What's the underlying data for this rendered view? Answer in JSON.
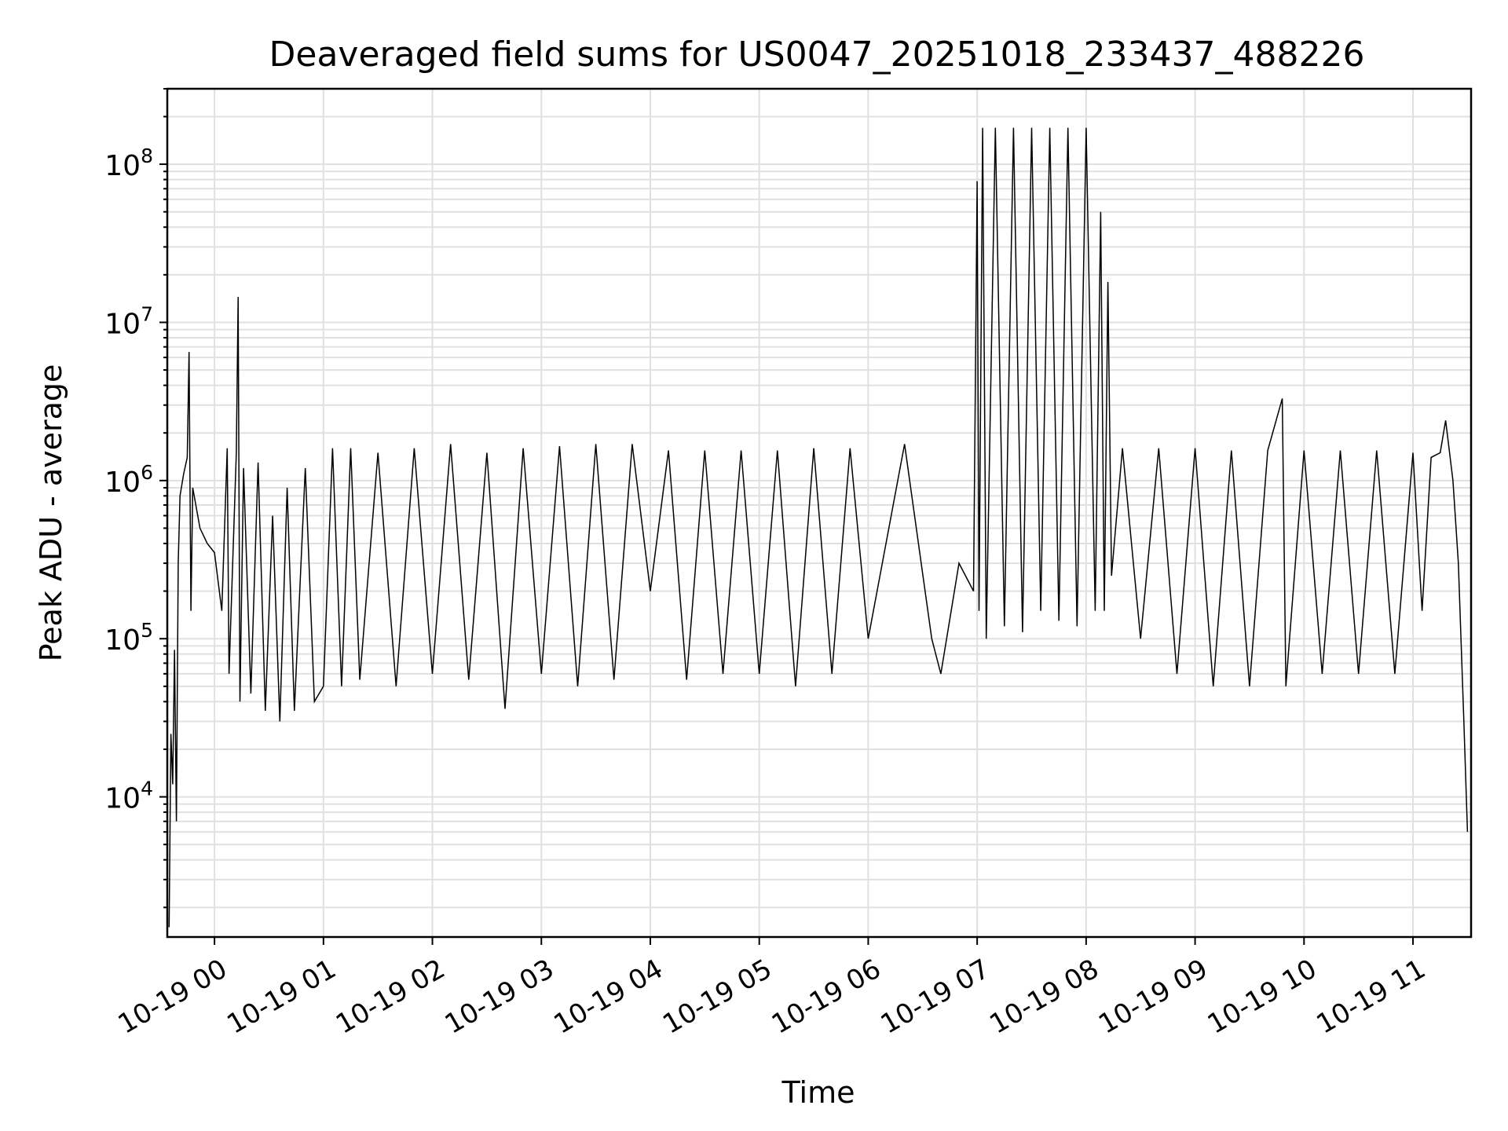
{
  "chart_data": {
    "type": "line",
    "title": "Deaveraged field sums for US0047_20251018_233437_488226",
    "xlabel": "Time",
    "ylabel": "Peak ADU - average",
    "yscale": "log",
    "ylim": [
      1300,
      300000000
    ],
    "xlim": [
      "2025-10-18 23:34",
      "2025-10-19 11:32"
    ],
    "grid": true,
    "line_color": "#000000",
    "x_ticks": [
      {
        "t": "2025-10-19 00:00",
        "label": "10-19 00"
      },
      {
        "t": "2025-10-19 01:00",
        "label": "10-19 01"
      },
      {
        "t": "2025-10-19 02:00",
        "label": "10-19 02"
      },
      {
        "t": "2025-10-19 03:00",
        "label": "10-19 03"
      },
      {
        "t": "2025-10-19 04:00",
        "label": "10-19 04"
      },
      {
        "t": "2025-10-19 05:00",
        "label": "10-19 05"
      },
      {
        "t": "2025-10-19 06:00",
        "label": "10-19 06"
      },
      {
        "t": "2025-10-19 07:00",
        "label": "10-19 07"
      },
      {
        "t": "2025-10-19 08:00",
        "label": "10-19 08"
      },
      {
        "t": "2025-10-19 09:00",
        "label": "10-19 09"
      },
      {
        "t": "2025-10-19 10:00",
        "label": "10-19 10"
      },
      {
        "t": "2025-10-19 11:00",
        "label": "10-19 11"
      }
    ],
    "y_ticks": [
      {
        "value": 10000,
        "base": "10",
        "exp": "4"
      },
      {
        "value": 100000,
        "base": "10",
        "exp": "5"
      },
      {
        "value": 1000000,
        "base": "10",
        "exp": "6"
      },
      {
        "value": 10000000,
        "base": "10",
        "exp": "7"
      },
      {
        "value": 100000000,
        "base": "10",
        "exp": "8"
      }
    ],
    "series": [
      {
        "points": [
          [
            "2025-10-18 23:35",
            1500
          ],
          [
            "2025-10-18 23:36",
            25000
          ],
          [
            "2025-10-18 23:37",
            12000
          ],
          [
            "2025-10-18 23:38",
            85000
          ],
          [
            "2025-10-18 23:39",
            7000
          ],
          [
            "2025-10-18 23:40",
            300000
          ],
          [
            "2025-10-18 23:41",
            800000
          ],
          [
            "2025-10-18 23:43",
            1100000
          ],
          [
            "2025-10-18 23:45",
            1400000
          ],
          [
            "2025-10-18 23:46",
            6500000
          ],
          [
            "2025-10-18 23:47",
            150000
          ],
          [
            "2025-10-18 23:48",
            900000
          ],
          [
            "2025-10-18 23:52",
            500000
          ],
          [
            "2025-10-18 23:56",
            400000
          ],
          [
            "2025-10-19 00:00",
            350000
          ],
          [
            "2025-10-19 00:04",
            150000
          ],
          [
            "2025-10-19 00:07",
            1600000
          ],
          [
            "2025-10-19 00:08",
            60000
          ],
          [
            "2025-10-19 00:12",
            1500000
          ],
          [
            "2025-10-19 00:13",
            14500000
          ],
          [
            "2025-10-19 00:14",
            40000
          ],
          [
            "2025-10-19 00:16",
            1200000
          ],
          [
            "2025-10-19 00:20",
            45000
          ],
          [
            "2025-10-19 00:24",
            1300000
          ],
          [
            "2025-10-19 00:28",
            35000
          ],
          [
            "2025-10-19 00:32",
            600000
          ],
          [
            "2025-10-19 00:36",
            30000
          ],
          [
            "2025-10-19 00:40",
            900000
          ],
          [
            "2025-10-19 00:44",
            35000
          ],
          [
            "2025-10-19 00:50",
            1200000
          ],
          [
            "2025-10-19 00:55",
            40000
          ],
          [
            "2025-10-19 01:00",
            50000
          ],
          [
            "2025-10-19 01:05",
            1600000
          ],
          [
            "2025-10-19 01:10",
            50000
          ],
          [
            "2025-10-19 01:15",
            1600000
          ],
          [
            "2025-10-19 01:20",
            55000
          ],
          [
            "2025-10-19 01:30",
            1500000
          ],
          [
            "2025-10-19 01:40",
            50000
          ],
          [
            "2025-10-19 01:50",
            1600000
          ],
          [
            "2025-10-19 02:00",
            60000
          ],
          [
            "2025-10-19 02:10",
            1700000
          ],
          [
            "2025-10-19 02:20",
            55000
          ],
          [
            "2025-10-19 02:30",
            1500000
          ],
          [
            "2025-10-19 02:40",
            36000
          ],
          [
            "2025-10-19 02:50",
            1600000
          ],
          [
            "2025-10-19 03:00",
            60000
          ],
          [
            "2025-10-19 03:10",
            1650000
          ],
          [
            "2025-10-19 03:20",
            50000
          ],
          [
            "2025-10-19 03:30",
            1700000
          ],
          [
            "2025-10-19 03:40",
            55000
          ],
          [
            "2025-10-19 03:50",
            1700000
          ],
          [
            "2025-10-19 04:00",
            200000
          ],
          [
            "2025-10-19 04:10",
            1550000
          ],
          [
            "2025-10-19 04:20",
            55000
          ],
          [
            "2025-10-19 04:30",
            1550000
          ],
          [
            "2025-10-19 04:40",
            60000
          ],
          [
            "2025-10-19 04:50",
            1550000
          ],
          [
            "2025-10-19 05:00",
            60000
          ],
          [
            "2025-10-19 05:10",
            1550000
          ],
          [
            "2025-10-19 05:20",
            50000
          ],
          [
            "2025-10-19 05:30",
            1600000
          ],
          [
            "2025-10-19 05:40",
            60000
          ],
          [
            "2025-10-19 05:50",
            1600000
          ],
          [
            "2025-10-19 06:00",
            100000
          ],
          [
            "2025-10-19 06:20",
            1700000
          ],
          [
            "2025-10-19 06:35",
            100000
          ],
          [
            "2025-10-19 06:40",
            60000
          ],
          [
            "2025-10-19 06:50",
            300000
          ],
          [
            "2025-10-19 06:58",
            200000
          ],
          [
            "2025-10-19 07:00",
            78000000
          ],
          [
            "2025-10-19 07:01",
            150000
          ],
          [
            "2025-10-19 07:03",
            170000000
          ],
          [
            "2025-10-19 07:05",
            100000
          ],
          [
            "2025-10-19 07:10",
            170000000
          ],
          [
            "2025-10-19 07:15",
            120000
          ],
          [
            "2025-10-19 07:20",
            170000000
          ],
          [
            "2025-10-19 07:25",
            110000
          ],
          [
            "2025-10-19 07:30",
            170000000
          ],
          [
            "2025-10-19 07:35",
            150000
          ],
          [
            "2025-10-19 07:40",
            170000000
          ],
          [
            "2025-10-19 07:45",
            130000
          ],
          [
            "2025-10-19 07:50",
            170000000
          ],
          [
            "2025-10-19 07:55",
            120000
          ],
          [
            "2025-10-19 08:00",
            170000000
          ],
          [
            "2025-10-19 08:05",
            150000
          ],
          [
            "2025-10-19 08:08",
            50000000
          ],
          [
            "2025-10-19 08:10",
            150000
          ],
          [
            "2025-10-19 08:12",
            18000000
          ],
          [
            "2025-10-19 08:14",
            250000
          ],
          [
            "2025-10-19 08:20",
            1600000
          ],
          [
            "2025-10-19 08:30",
            100000
          ],
          [
            "2025-10-19 08:40",
            1600000
          ],
          [
            "2025-10-19 08:50",
            60000
          ],
          [
            "2025-10-19 09:00",
            1600000
          ],
          [
            "2025-10-19 09:10",
            50000
          ],
          [
            "2025-10-19 09:20",
            1550000
          ],
          [
            "2025-10-19 09:30",
            50000
          ],
          [
            "2025-10-19 09:40",
            1550000
          ],
          [
            "2025-10-19 09:48",
            3300000
          ],
          [
            "2025-10-19 09:50",
            50000
          ],
          [
            "2025-10-19 10:00",
            1550000
          ],
          [
            "2025-10-19 10:10",
            60000
          ],
          [
            "2025-10-19 10:20",
            1550000
          ],
          [
            "2025-10-19 10:30",
            60000
          ],
          [
            "2025-10-19 10:40",
            1550000
          ],
          [
            "2025-10-19 10:50",
            60000
          ],
          [
            "2025-10-19 11:00",
            1500000
          ],
          [
            "2025-10-19 11:05",
            150000
          ],
          [
            "2025-10-19 11:10",
            1400000
          ],
          [
            "2025-10-19 11:15",
            1500000
          ],
          [
            "2025-10-19 11:18",
            2400000
          ],
          [
            "2025-10-19 11:22",
            1000000
          ],
          [
            "2025-10-19 11:25",
            300000
          ],
          [
            "2025-10-19 11:28",
            30000
          ],
          [
            "2025-10-19 11:30",
            6000
          ]
        ]
      }
    ]
  }
}
